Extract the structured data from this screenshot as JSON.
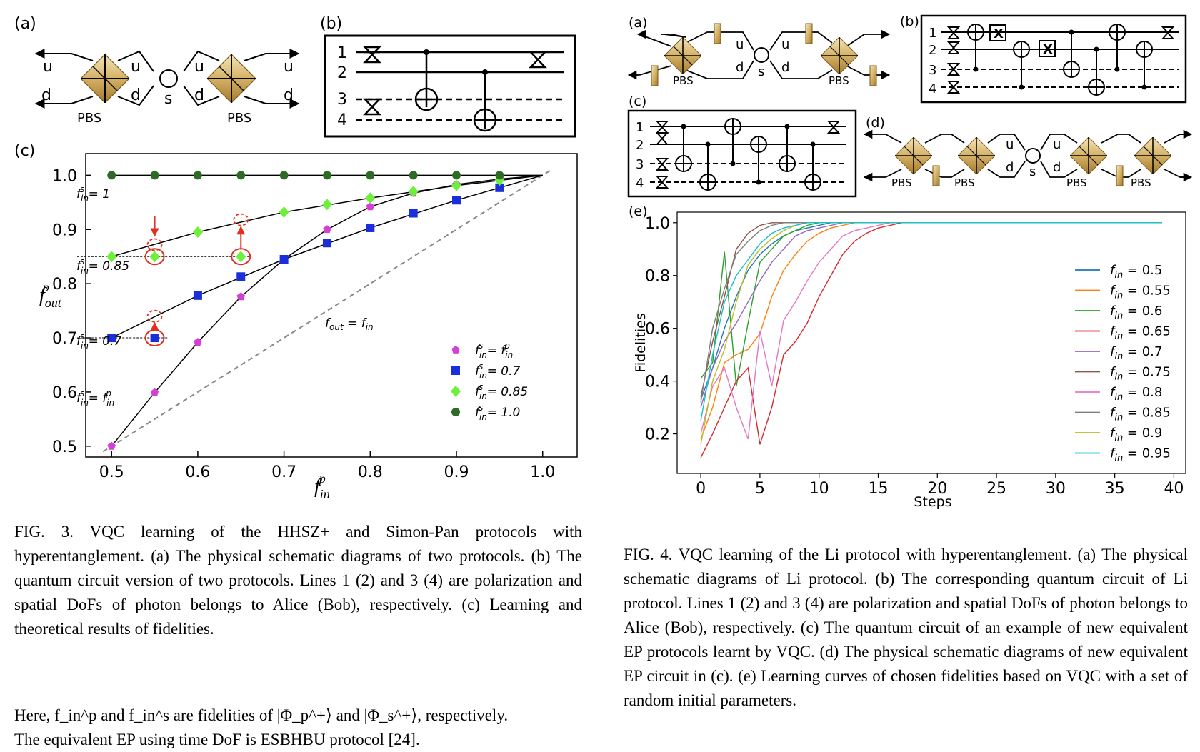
{
  "fig3": {
    "panel_labels": {
      "a": "(a)",
      "b": "(b)",
      "c": "(c)"
    },
    "schematic": {
      "u": "u",
      "d": "d",
      "s": "s",
      "pbs": "PBS"
    },
    "circuit_lines": [
      "1",
      "2",
      "3",
      "4"
    ],
    "chart_data": {
      "type": "line+scatter",
      "xlabel": "f_in^p",
      "ylabel": "f_out^p",
      "xlim": [
        0.47,
        1.04
      ],
      "ylim": [
        0.48,
        1.04
      ],
      "xticks": [
        "0.5",
        "0.6",
        "0.7",
        "0.8",
        "0.9",
        "1.0"
      ],
      "yticks": [
        "0.5",
        "0.6",
        "0.7",
        "0.8",
        "0.9",
        "1.0"
      ],
      "diagonal_label": "f_out = f_in",
      "series": [
        {
          "name": "f_in^s = f_in^p",
          "color": "#d63fd6",
          "marker": "pentagon",
          "x": [
            0.5,
            0.55,
            0.6,
            0.65,
            0.75,
            0.8,
            0.85,
            0.9,
            0.95
          ],
          "y": [
            0.5,
            0.599,
            0.692,
            0.776,
            0.9,
            0.942,
            0.967,
            0.983,
            0.993
          ]
        },
        {
          "name": "f_in^s = 0.7",
          "color": "#1a2fd9",
          "marker": "square",
          "x": [
            0.5,
            0.55,
            0.6,
            0.65,
            0.7,
            0.75,
            0.8,
            0.85,
            0.9,
            0.95
          ],
          "y": [
            0.7,
            0.7,
            0.778,
            0.813,
            0.845,
            0.875,
            0.903,
            0.93,
            0.954,
            0.977
          ]
        },
        {
          "name": "f_in^s = 0.85",
          "color": "#6cf03a",
          "marker": "diamond",
          "x": [
            0.5,
            0.55,
            0.6,
            0.65,
            0.7,
            0.75,
            0.8,
            0.85,
            0.9,
            0.95
          ],
          "y": [
            0.85,
            0.85,
            0.895,
            0.85,
            0.932,
            0.946,
            0.958,
            0.97,
            0.981,
            0.991
          ]
        },
        {
          "name": "f_in^s = 1.0",
          "color": "#2e6b26",
          "marker": "circle",
          "x": [
            0.5,
            0.55,
            0.6,
            0.65,
            0.7,
            0.75,
            0.8,
            0.85,
            0.9,
            0.95
          ],
          "y": [
            1,
            1,
            1,
            1,
            1,
            1,
            1,
            1,
            1,
            1
          ]
        }
      ],
      "annotations": [
        "f_in^s = 1",
        "f_in^s = 0.85",
        "f_in^s = 0.7",
        "f_in^s = f_in^p"
      ]
    },
    "caption": "FIG. 3. VQC learning of the HHSZ+ and Simon-Pan protocols with hyperentanglement. (a) The physical schematic diagrams of two protocols. (b) The quantum circuit version of two protocols. Lines 1 (2) and 3 (4) are polarization and spatial DoFs of photon belongs to Alice (Bob), respectively. (c) Learning and theoretical results of fidelities."
  },
  "fig4": {
    "panel_labels": {
      "a": "(a)",
      "b": "(b)",
      "c": "(c)",
      "d": "(d)",
      "e": "(e)"
    },
    "gate_x": "X",
    "chart_data": {
      "type": "line",
      "xlabel": "Steps",
      "ylabel": "Fidelities",
      "xlim": [
        -2,
        41
      ],
      "ylim": [
        0.05,
        1.04
      ],
      "xticks": [
        "0",
        "5",
        "10",
        "15",
        "20",
        "25",
        "30",
        "35",
        "40"
      ],
      "yticks": [
        "0.2",
        "0.4",
        "0.6",
        "0.8",
        "1.0"
      ],
      "series": [
        {
          "name": "f_in = 0.5",
          "color": "#1f77b4",
          "y": [
            0.33,
            0.45,
            0.6,
            0.72,
            0.82,
            0.88,
            0.92,
            0.95,
            0.97,
            0.98,
            0.99,
            1.0
          ]
        },
        {
          "name": "f_in = 0.55",
          "color": "#ff7f0e",
          "y": [
            0.18,
            0.3,
            0.47,
            0.5,
            0.52,
            0.58,
            0.72,
            0.82,
            0.88,
            0.93,
            0.96,
            0.98,
            0.99,
            1.0
          ]
        },
        {
          "name": "f_in = 0.6",
          "color": "#2ca02c",
          "y": [
            0.41,
            0.47,
            0.89,
            0.38,
            0.62,
            0.85,
            0.9,
            0.95,
            0.97,
            0.99,
            1.0
          ]
        },
        {
          "name": "f_in = 0.65",
          "color": "#d62728",
          "y": [
            0.11,
            0.2,
            0.3,
            0.4,
            0.45,
            0.16,
            0.3,
            0.5,
            0.55,
            0.62,
            0.72,
            0.8,
            0.88,
            0.93,
            0.96,
            0.98,
            0.99,
            1.0
          ]
        },
        {
          "name": "f_in = 0.7",
          "color": "#9467bd",
          "y": [
            0.3,
            0.45,
            0.55,
            0.62,
            0.7,
            0.78,
            0.85,
            0.9,
            0.95,
            0.97,
            0.98,
            0.99,
            1.0
          ]
        },
        {
          "name": "f_in = 0.75",
          "color": "#8c564b",
          "y": [
            0.34,
            0.55,
            0.72,
            0.9,
            0.96,
            0.99,
            1.0
          ]
        },
        {
          "name": "f_in = 0.8",
          "color": "#e377c2",
          "y": [
            0.2,
            0.38,
            0.45,
            0.3,
            0.18,
            0.59,
            0.38,
            0.63,
            0.7,
            0.78,
            0.85,
            0.9,
            0.95,
            0.97,
            0.98,
            0.99,
            1.0
          ]
        },
        {
          "name": "f_in = 0.85",
          "color": "#7f7f7f",
          "y": [
            0.32,
            0.6,
            0.75,
            0.88,
            0.93,
            0.97,
            0.99,
            1.0
          ]
        },
        {
          "name": "f_in = 0.9",
          "color": "#bcbd22",
          "y": [
            0.16,
            0.4,
            0.52,
            0.7,
            0.84,
            0.9,
            0.94,
            0.97,
            0.99,
            1.0
          ]
        },
        {
          "name": "f_in = 0.95",
          "color": "#17becf",
          "y": [
            0.25,
            0.5,
            0.7,
            0.8,
            0.86,
            0.92,
            0.96,
            0.98,
            0.99,
            1.0
          ]
        }
      ]
    },
    "caption": "FIG. 4. VQC learning of the Li protocol with hyperentanglement. (a) The physical schematic diagrams of Li protocol. (b) The corresponding quantum circuit of Li protocol. Lines 1 (2) and 3 (4) are polarization and spatial DoFs of photon belongs to Alice (Bob), respectively. (c) The quantum circuit of an example of new equivalent EP protocols learnt by VQC. (d) The physical schematic diagrams of new equivalent EP circuit in (c). (e) Learning curves of chosen fidelities based on VQC with a set of random initial parameters."
  },
  "body_text": {
    "line1": "Here, f_in^p and f_in^s are fidelities of |Φ_p^+⟩ and |Φ_s^+⟩, respectively.",
    "line2": "The equivalent EP using time DoF is ESBHBU protocol [24]."
  }
}
